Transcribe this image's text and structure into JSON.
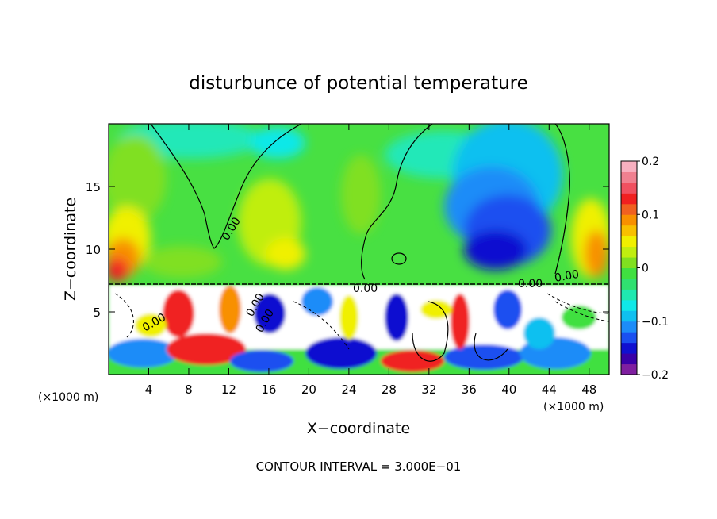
{
  "chart_data": {
    "type": "heatmap",
    "title": "disturbunce of potential temperature",
    "xlabel": "X−coordinate",
    "ylabel": "Z−coordinate",
    "x_unit_left": "(×1000 m)",
    "x_unit_right": "(×1000 m)",
    "xlim": [
      0,
      50
    ],
    "ylim": [
      0,
      20
    ],
    "x_ticks": [
      4,
      8,
      12,
      16,
      20,
      24,
      28,
      32,
      36,
      40,
      44,
      48
    ],
    "x_tick_labels": [
      "4",
      "8",
      "12",
      "16",
      "20",
      "24",
      "28",
      "32",
      "36",
      "40",
      "44",
      "48"
    ],
    "y_ticks": [
      5,
      10,
      15
    ],
    "y_tick_labels": [
      "5",
      "10",
      "15"
    ],
    "colorbar": {
      "range": [
        -0.2,
        0.2
      ],
      "tick_values": [
        0.2,
        0.1,
        0,
        -0.1,
        -0.2
      ],
      "tick_labels": [
        "0.2",
        "0.1",
        "0",
        "−0.1",
        "−0.2"
      ],
      "colors": [
        "#7f1fa0",
        "#3a00a8",
        "#1010d0",
        "#1a50f0",
        "#1c8cf8",
        "#10c0f0",
        "#10e8e8",
        "#20e8b0",
        "#30e070",
        "#40e040",
        "#80e020",
        "#c0ee10",
        "#f0f000",
        "#f8c000",
        "#f89000",
        "#f06020",
        "#f02020",
        "#f05060",
        "#f08090",
        "#f8b0c0"
      ]
    },
    "contour_labels": [
      "0.00",
      "0.00",
      "0.00",
      "0.00",
      "0.00",
      "0.00",
      "0.00"
    ],
    "footer": "CONTOUR INTERVAL = 3.000E−01"
  }
}
